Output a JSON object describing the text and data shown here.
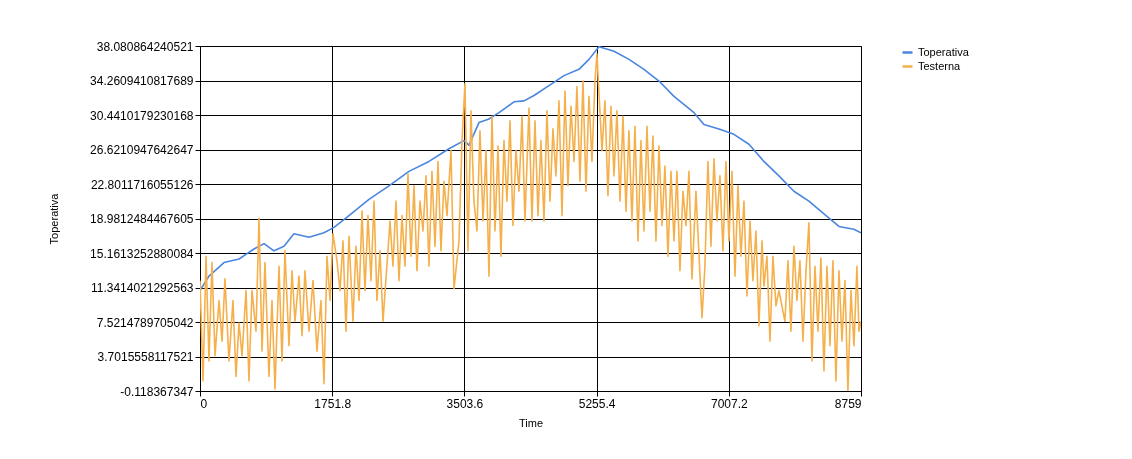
{
  "chart_data": {
    "type": "line",
    "xlabel": "Time",
    "ylabel": "Toperativa",
    "xlim": [
      0,
      8759
    ],
    "ylim": [
      -0.118367347,
      38.080864240521
    ],
    "xticks": [
      0,
      1751.8,
      3503.6,
      5255.4,
      7007.2,
      8759
    ],
    "yticks": [
      -0.118367347,
      3.7015558117521,
      7.5214789705042,
      11.3414021292563,
      15.1613252880084,
      18.9812484467605,
      22.8011716055126,
      26.6210947642647,
      30.4410179230168,
      34.2609410817689,
      38.080864240521
    ],
    "grid": true,
    "legend": "top right",
    "marker": "none",
    "line_style": "solid",
    "series": [
      {
        "name": "Toperativa",
        "color": "#4a86e0",
        "x": [
          0,
          119,
          318,
          517,
          715,
          848,
          980,
          1113,
          1245,
          1444,
          1643,
          1776,
          1974,
          2239,
          2504,
          2769,
          3034,
          3299,
          3498,
          3564,
          3697,
          3830,
          3962,
          4161,
          4293,
          4426,
          4624,
          4823,
          5022,
          5154,
          5287,
          5486,
          5685,
          5883,
          6082,
          6281,
          6546,
          6678,
          6877,
          7075,
          7274,
          7473,
          7671,
          7870,
          8069,
          8268,
          8467,
          8665,
          8759
        ],
        "values": [
          11.0,
          12.6,
          14.1,
          14.5,
          15.6,
          16.2,
          15.4,
          15.9,
          17.3,
          16.9,
          17.4,
          18.0,
          19.3,
          21.1,
          22.6,
          24.2,
          25.3,
          26.7,
          27.6,
          27.1,
          29.6,
          30.0,
          30.7,
          31.9,
          32.0,
          32.6,
          33.7,
          34.8,
          35.5,
          36.6,
          38.0,
          37.5,
          36.6,
          35.5,
          34.2,
          32.5,
          30.7,
          29.4,
          28.9,
          28.3,
          27.2,
          25.3,
          23.7,
          22.0,
          20.9,
          19.5,
          18.1,
          17.8,
          17.4
        ]
      },
      {
        "name": "Testerna",
        "color": "#f5b04c",
        "x": [
          0,
          40,
          80,
          119,
          159,
          199,
          252,
          292,
          331,
          384,
          437,
          477,
          517,
          557,
          610,
          649,
          689,
          742,
          782,
          822,
          861,
          914,
          954,
          994,
          1047,
          1087,
          1126,
          1179,
          1219,
          1259,
          1312,
          1352,
          1391,
          1444,
          1497,
          1550,
          1603,
          1643,
          1683,
          1723,
          1762,
          1815,
          1855,
          1895,
          1935,
          1974,
          2027,
          2067,
          2107,
          2147,
          2186,
          2226,
          2266,
          2306,
          2345,
          2385,
          2425,
          2518,
          2557,
          2597,
          2637,
          2677,
          2716,
          2756,
          2796,
          2836,
          2875,
          2915,
          2955,
          2995,
          3034,
          3074,
          3114,
          3154,
          3193,
          3233,
          3273,
          3326,
          3366,
          3432,
          3472,
          3511,
          3551,
          3591,
          3630,
          3670,
          3710,
          3750,
          3790,
          3829,
          3869,
          3909,
          3949,
          3988,
          4028,
          4068,
          4108,
          4147,
          4187,
          4227,
          4267,
          4306,
          4359,
          4399,
          4439,
          4479,
          4518,
          4558,
          4598,
          4638,
          4677,
          4717,
          4757,
          4797,
          4836,
          4876,
          4916,
          4956,
          4995,
          5035,
          5075,
          5115,
          5154,
          5194,
          5234,
          5260,
          5327,
          5366,
          5406,
          5446,
          5486,
          5525,
          5565,
          5605,
          5645,
          5684,
          5724,
          5764,
          5804,
          5843,
          5883,
          5923,
          5963,
          6002,
          6042,
          6082,
          6122,
          6161,
          6201,
          6241,
          6281,
          6320,
          6360,
          6400,
          6440,
          6479,
          6519,
          6572,
          6652,
          6691,
          6731,
          6771,
          6811,
          6850,
          6890,
          6930,
          6970,
          7009,
          7049,
          7089,
          7129,
          7168,
          7208,
          7248,
          7288,
          7327,
          7367,
          7407,
          7447,
          7473,
          7513,
          7553,
          7592,
          7632,
          7672,
          7751,
          7791,
          7831,
          7871,
          7910,
          7950,
          7990,
          8030,
          8069,
          8109,
          8149,
          8189,
          8228,
          8268,
          8308,
          8348,
          8387,
          8427,
          8467,
          8507,
          8546,
          8586,
          8626,
          8666,
          8705,
          8732,
          8759
        ],
        "values": [
          12.1,
          1.0,
          14.8,
          3.2,
          14.1,
          3.8,
          9.9,
          5.4,
          12.3,
          3.2,
          9.9,
          1.5,
          7.4,
          3.8,
          11.0,
          1.0,
          11.0,
          6.5,
          19.0,
          4.3,
          14.1,
          1.5,
          9.9,
          0.1,
          13.7,
          3.2,
          15.4,
          4.9,
          13.2,
          7.6,
          12.6,
          6.0,
          13.2,
          6.5,
          12.1,
          4.3,
          9.9,
          0.7,
          14.8,
          9.9,
          17.3,
          14.3,
          11.0,
          16.5,
          6.5,
          17.0,
          7.6,
          15.9,
          9.9,
          19.8,
          11.0,
          19.3,
          12.1,
          20.9,
          9.9,
          15.4,
          7.6,
          18.7,
          13.7,
          20.9,
          12.1,
          19.3,
          13.7,
          23.9,
          14.8,
          22.6,
          13.2,
          20.9,
          17.6,
          23.7,
          13.7,
          24.2,
          15.9,
          25.3,
          15.4,
          23.1,
          19.3,
          26.5,
          11.2,
          16.5,
          27.6,
          33.9,
          15.4,
          30.9,
          20.9,
          17.6,
          28.7,
          18.7,
          26.5,
          12.6,
          30.3,
          17.6,
          27.0,
          14.8,
          27.6,
          20.9,
          29.8,
          18.2,
          26.5,
          22.0,
          30.3,
          18.7,
          31.2,
          18.7,
          29.8,
          19.3,
          27.6,
          18.7,
          30.9,
          20.9,
          28.9,
          23.7,
          32.0,
          19.3,
          33.1,
          22.6,
          31.4,
          25.3,
          33.6,
          23.1,
          34.2,
          22.0,
          32.5,
          25.3,
          34.2,
          37.2,
          26.5,
          32.0,
          21.5,
          31.4,
          23.7,
          30.9,
          20.9,
          30.3,
          19.8,
          28.7,
          18.7,
          29.2,
          16.5,
          27.6,
          17.6,
          29.2,
          19.8,
          28.1,
          16.5,
          27.0,
          18.2,
          24.8,
          14.8,
          24.2,
          16.5,
          24.2,
          13.2,
          22.0,
          18.2,
          24.2,
          12.3,
          22.0,
          8.0,
          13.7,
          25.3,
          15.9,
          25.6,
          18.7,
          23.7,
          15.4,
          25.3,
          16.5,
          24.2,
          12.6,
          22.6,
          14.8,
          20.9,
          10.4,
          18.7,
          12.1,
          17.6,
          7.1,
          16.5,
          11.5,
          14.8,
          5.4,
          14.8,
          9.3,
          11.0,
          7.6,
          14.3,
          6.5,
          15.9,
          9.9,
          14.3,
          5.4,
          13.2,
          18.5,
          3.2,
          13.7,
          6.5,
          14.6,
          2.1,
          13.7,
          4.9,
          14.3,
          1.0,
          13.2,
          5.4,
          12.1,
          -0.1,
          11.0,
          4.9,
          13.7,
          6.5,
          7.6
        ]
      }
    ]
  }
}
